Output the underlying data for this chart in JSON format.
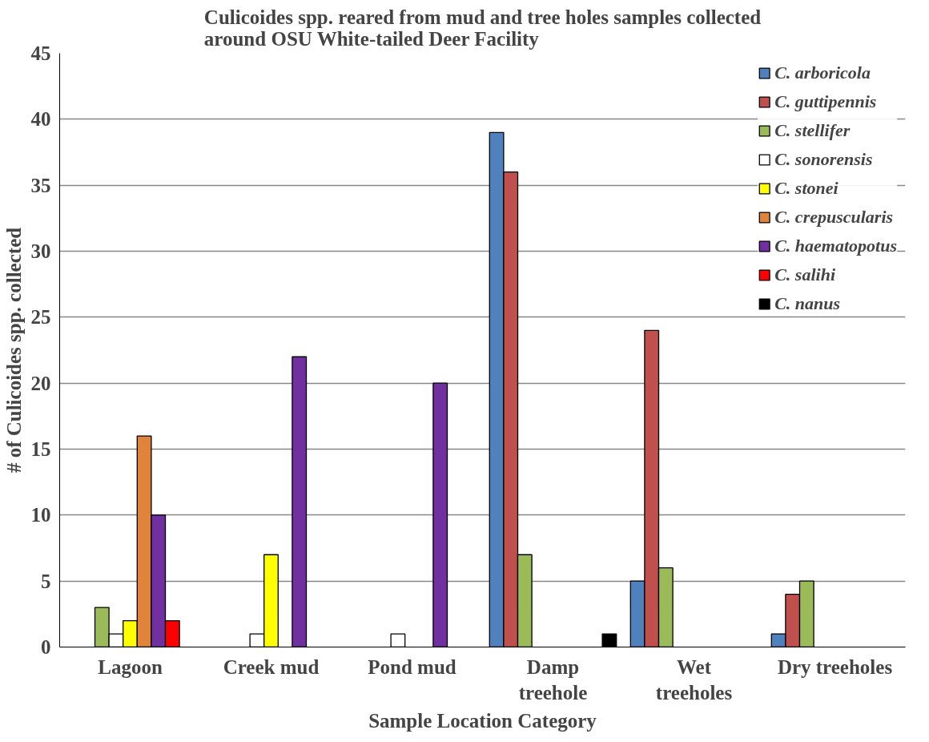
{
  "chart_data": {
    "type": "bar",
    "title": "Culicoides spp. reared from mud and tree holes samples collected\naround OSU White-tailed Deer Facility",
    "xlabel": "Sample Location Category",
    "ylabel": "# of Culicoides spp. collected",
    "categories": [
      "Lagoon",
      "Creek mud",
      "Pond mud",
      "Damp\ntreehole",
      "Wet\ntreeholes",
      "Dry treeholes"
    ],
    "series": [
      {
        "name": "C. arboricola",
        "color": "#4f81bd",
        "values": [
          null,
          null,
          null,
          39,
          5,
          1
        ]
      },
      {
        "name": "C. guttipennis",
        "color": "#c0504d",
        "values": [
          null,
          null,
          null,
          36,
          24,
          4
        ]
      },
      {
        "name": "C. stellifer",
        "color": "#9bbb59",
        "values": [
          3,
          null,
          null,
          7,
          6,
          5
        ]
      },
      {
        "name": "C. sonorensis",
        "color": "#ffffff",
        "values": [
          1,
          1,
          1,
          null,
          null,
          null
        ]
      },
      {
        "name": "C. stonei",
        "color": "#ffff00",
        "values": [
          2,
          7,
          null,
          null,
          null,
          null
        ]
      },
      {
        "name": "C. crepuscularis",
        "color": "#e0843c",
        "values": [
          16,
          null,
          null,
          null,
          null,
          null
        ]
      },
      {
        "name": "C. haematopotus",
        "color": "#7030a0",
        "values": [
          10,
          22,
          20,
          null,
          null,
          null
        ]
      },
      {
        "name": "C. salihi",
        "color": "#ff0000",
        "values": [
          2,
          null,
          null,
          null,
          null,
          null
        ]
      },
      {
        "name": "C. nanus",
        "color": "#000000",
        "values": [
          null,
          null,
          null,
          1,
          null,
          null
        ]
      }
    ],
    "ylim": [
      0,
      45
    ],
    "yticks": [
      0,
      5,
      10,
      15,
      20,
      25,
      30,
      35,
      40,
      45
    ],
    "grid": "y",
    "legend": "top right"
  }
}
